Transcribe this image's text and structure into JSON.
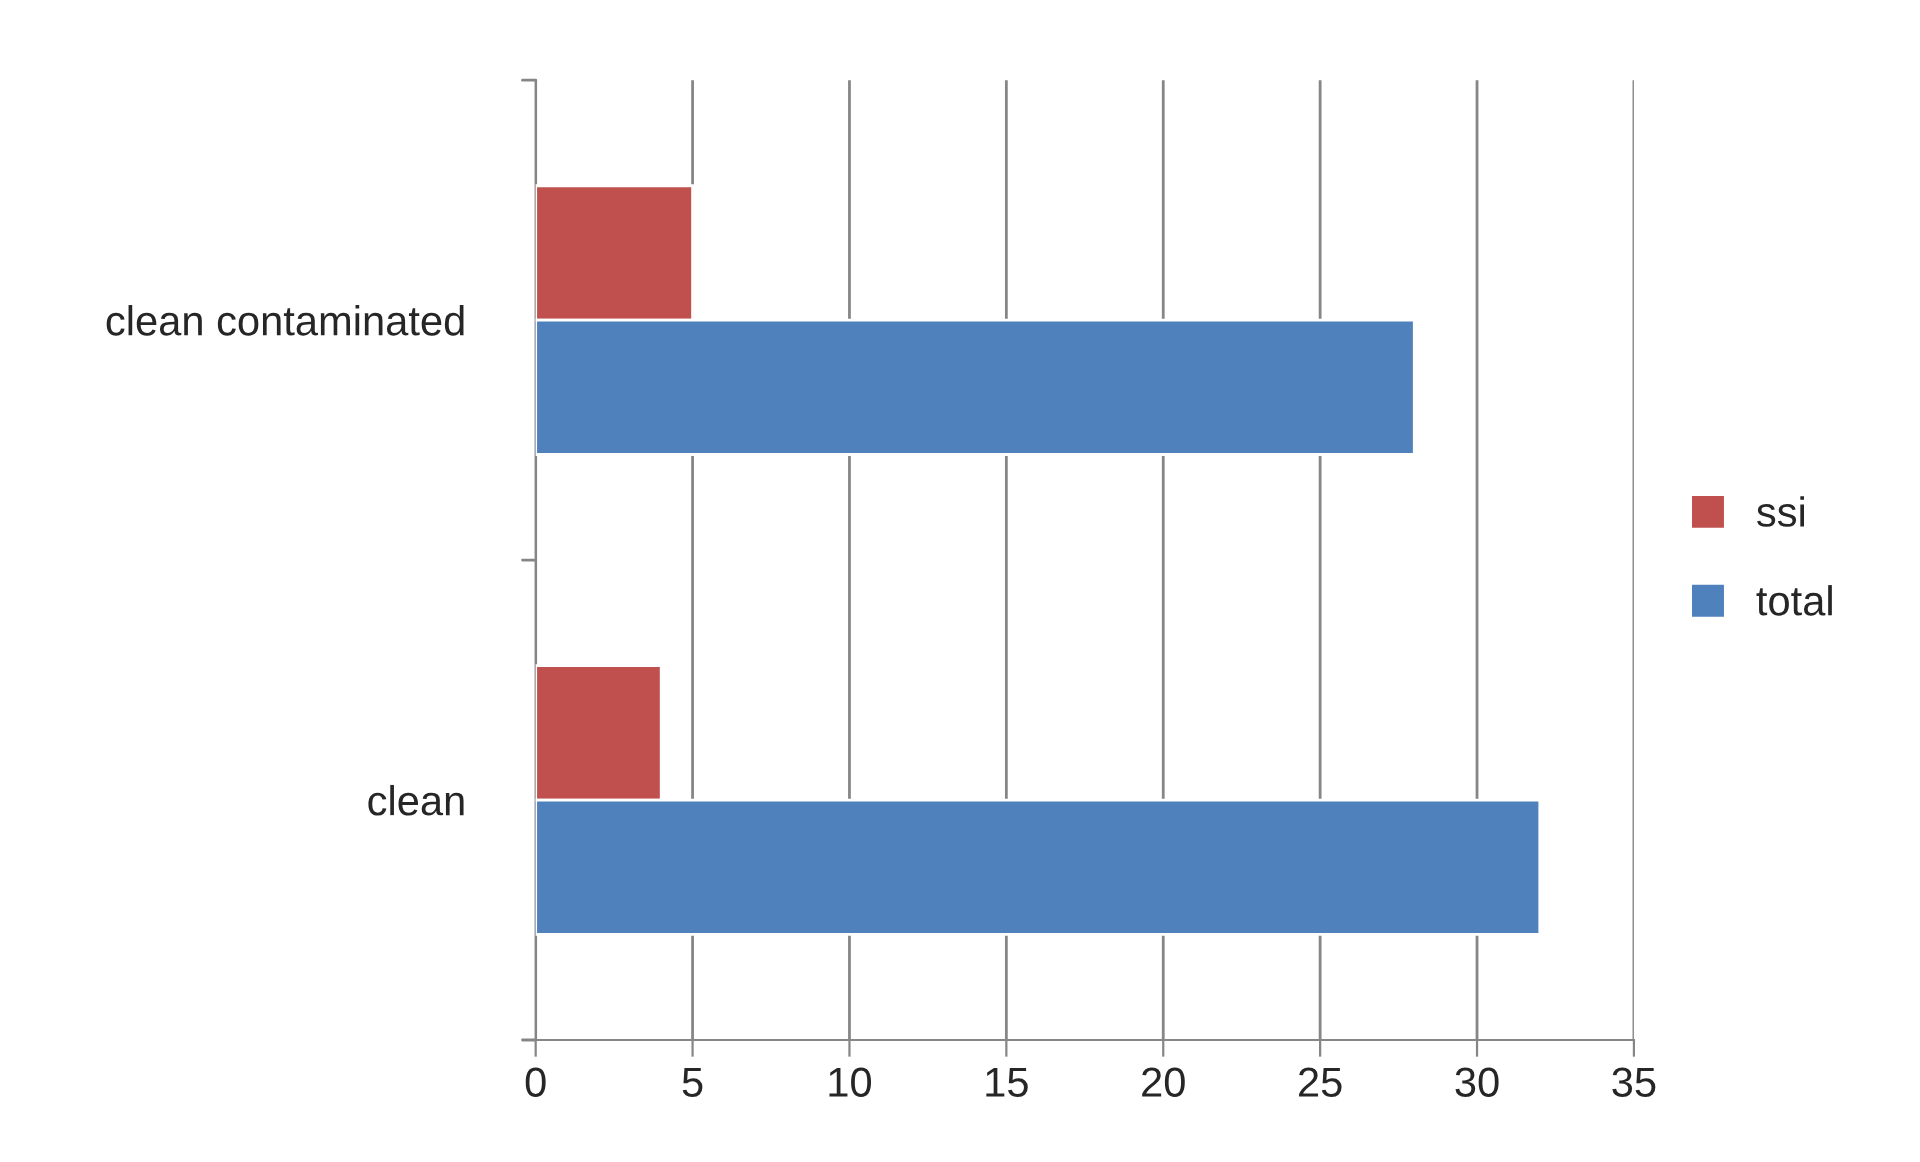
{
  "chart_data": {
    "type": "bar",
    "orientation": "horizontal",
    "categories": [
      "clean contaminated",
      "clean"
    ],
    "series": [
      {
        "name": "ssi",
        "color": "#c0504d",
        "values": [
          5,
          4
        ]
      },
      {
        "name": "total",
        "color": "#4f81bd",
        "values": [
          28,
          32
        ]
      }
    ],
    "xlim": [
      0,
      35
    ],
    "xticks": [
      0,
      5,
      10,
      15,
      20,
      25,
      30,
      35
    ],
    "grid": "x",
    "legend": "right"
  }
}
